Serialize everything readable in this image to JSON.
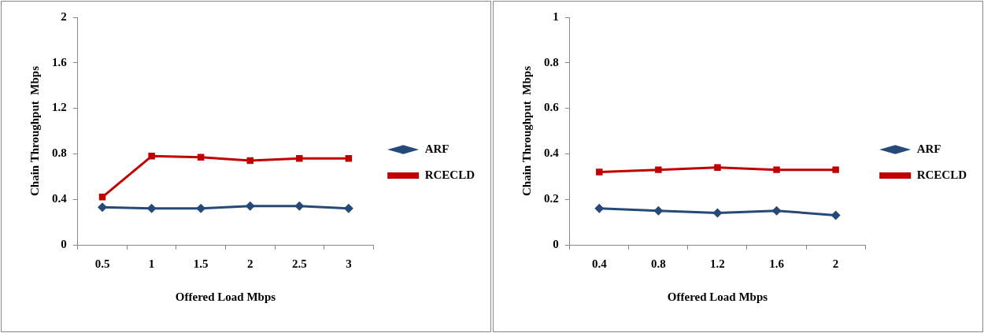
{
  "chart_data": [
    {
      "type": "line",
      "xlabel": "Offered Load Mbps",
      "ylabel": "Chain Throughput  Mbps",
      "categories": [
        "0.5",
        "1",
        "1.5",
        "2",
        "2.5",
        "3"
      ],
      "series": [
        {
          "name": "ARF",
          "color": "#264a78",
          "values": [
            0.33,
            0.32,
            0.32,
            0.34,
            0.34,
            0.32
          ],
          "marker": "diamond"
        },
        {
          "name": "RCECLD",
          "color": "#c00000",
          "values": [
            0.42,
            0.78,
            0.77,
            0.74,
            0.76,
            0.76
          ],
          "marker": "square"
        }
      ],
      "ylim": [
        0,
        2
      ],
      "yticks": [
        0,
        0.4,
        0.8,
        1.2,
        1.6,
        2
      ],
      "grid": false,
      "legend": "right"
    },
    {
      "type": "line",
      "xlabel": "Offered Load Mbps",
      "ylabel": "Chain Throughput  Mbps",
      "categories": [
        "0.4",
        "0.8",
        "1.2",
        "1.6",
        "2"
      ],
      "series": [
        {
          "name": "ARF",
          "color": "#264a78",
          "values": [
            0.16,
            0.15,
            0.14,
            0.15,
            0.13
          ],
          "marker": "diamond"
        },
        {
          "name": "RCECLD",
          "color": "#c00000",
          "values": [
            0.32,
            0.33,
            0.34,
            0.33,
            0.33
          ],
          "marker": "square"
        }
      ],
      "ylim": [
        0,
        1
      ],
      "yticks": [
        0,
        0.2,
        0.4,
        0.6,
        0.8,
        1
      ],
      "grid": false,
      "legend": "right"
    }
  ]
}
